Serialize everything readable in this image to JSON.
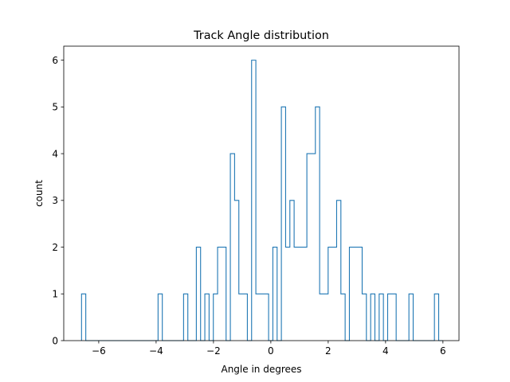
{
  "chart_data": {
    "type": "histogram",
    "title": "Track Angle distribution",
    "xlabel": "Angle in degrees",
    "ylabel": "count",
    "xlim": [
      -7.22,
      6.56
    ],
    "ylim": [
      0,
      6.3
    ],
    "xticks": [
      -6,
      -4,
      -2,
      0,
      2,
      4,
      6
    ],
    "xtick_labels": [
      "−6",
      "−4",
      "−2",
      "0",
      "2",
      "4",
      "6"
    ],
    "yticks": [
      0,
      1,
      2,
      3,
      4,
      5,
      6
    ],
    "ytick_labels": [
      "0",
      "1",
      "2",
      "3",
      "4",
      "5",
      "6"
    ],
    "grid": false,
    "histtype": "step",
    "color": "#1f77b4",
    "bin_start": -6.6,
    "bin_end": 6.0,
    "counts": [
      1,
      0,
      0,
      0,
      0,
      0,
      0,
      0,
      0,
      0,
      0,
      0,
      0,
      0,
      0,
      0,
      0,
      0,
      1,
      0,
      0,
      0,
      0,
      0,
      1,
      0,
      0,
      2,
      0,
      1,
      0,
      1,
      2,
      2,
      0,
      4,
      3,
      1,
      1,
      0,
      6,
      1,
      1,
      1,
      0,
      2,
      0,
      5,
      2,
      3,
      2,
      2,
      2,
      4,
      4,
      5,
      1,
      1,
      2,
      2,
      3,
      1,
      0,
      2,
      2,
      2,
      1,
      0,
      1,
      0,
      1,
      0,
      1,
      1,
      0,
      0,
      0,
      1,
      0,
      0,
      0,
      0,
      0,
      1,
      0
    ]
  }
}
